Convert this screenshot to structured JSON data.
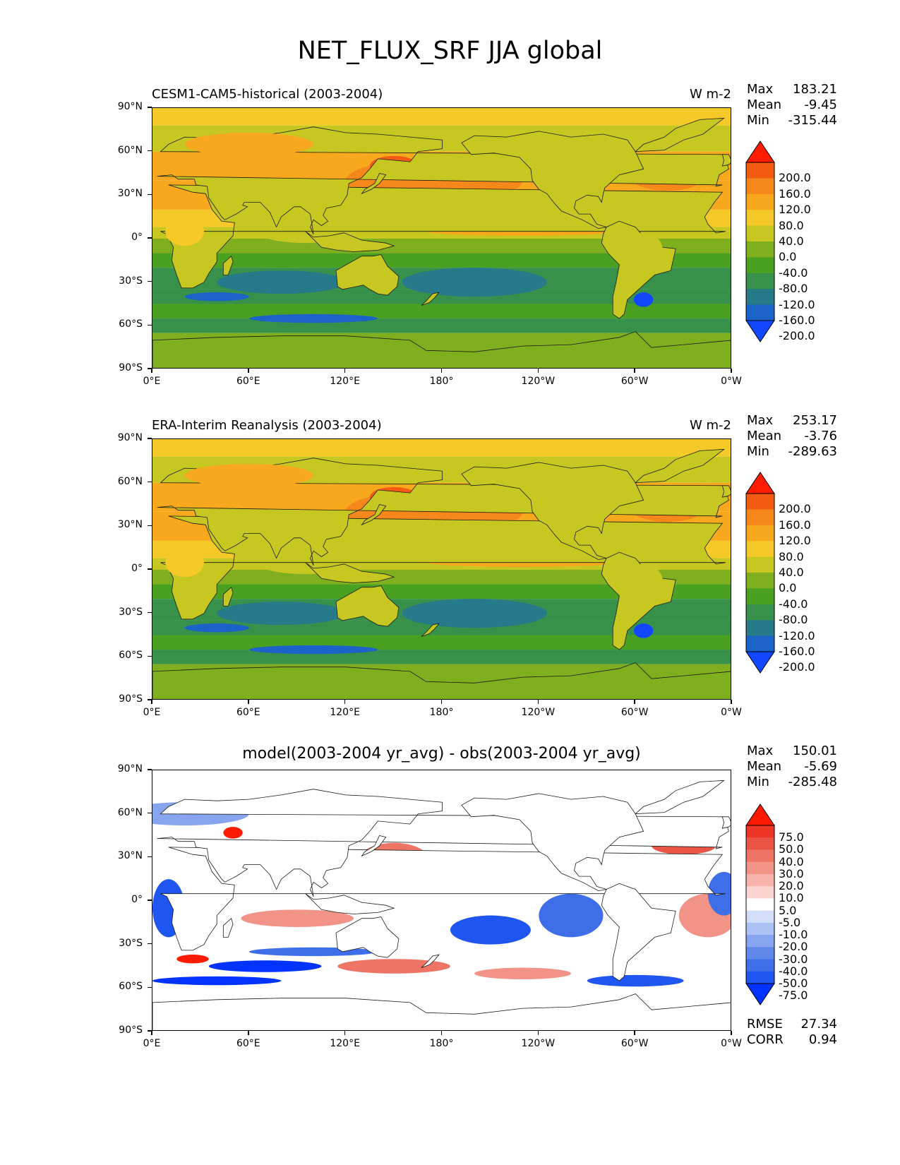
{
  "figure": {
    "title": "NET_FLUX_SRF JJA global",
    "x_ticks": [
      "0°E",
      "60°E",
      "120°E",
      "180°",
      "120°W",
      "60°W",
      "0°W"
    ],
    "y_ticks": [
      "90°N",
      "60°N",
      "30°N",
      "0°",
      "30°S",
      "60°S",
      "90°S"
    ]
  },
  "panels": [
    {
      "name": "model",
      "subtitle": "CESM1-CAM5-historical (2003-2004)",
      "units": "W m-2",
      "stats": {
        "max_label": "Max",
        "max": "183.21",
        "mean_label": "Mean",
        "mean": "-9.45",
        "min_label": "Min",
        "min": "-315.44"
      },
      "colorbar_labels": [
        "200.0",
        "160.0",
        "120.0",
        "80.0",
        "40.0",
        "0.0",
        "-40.0",
        "-80.0",
        "-120.0",
        "-160.0",
        "-200.0"
      ]
    },
    {
      "name": "obs",
      "subtitle": "ERA-Interim Reanalysis (2003-2004)",
      "units": "W m-2",
      "stats": {
        "max_label": "Max",
        "max": "253.17",
        "mean_label": "Mean",
        "mean": "-3.76",
        "min_label": "Min",
        "min": "-289.63"
      },
      "colorbar_labels": [
        "200.0",
        "160.0",
        "120.0",
        "80.0",
        "40.0",
        "0.0",
        "-40.0",
        "-80.0",
        "-120.0",
        "-160.0",
        "-200.0"
      ]
    },
    {
      "name": "diff",
      "subtitle": "model(2003-2004 yr_avg) - obs(2003-2004 yr_avg)",
      "stats": {
        "max_label": "Max",
        "max": "150.01",
        "mean_label": "Mean",
        "mean": "-5.69",
        "min_label": "Min",
        "min": "-285.48"
      },
      "colorbar_labels": [
        "75.0",
        "50.0",
        "40.0",
        "30.0",
        "20.0",
        "10.0",
        "5.0",
        "-5.0",
        "-10.0",
        "-20.0",
        "-30.0",
        "-40.0",
        "-50.0",
        "-75.0"
      ],
      "rmse_label": "RMSE",
      "rmse": "27.34",
      "corr_label": "CORR",
      "corr": "0.94"
    }
  ],
  "chart_data": [
    {
      "type": "heatmap",
      "title": "NET_FLUX_SRF JJA global",
      "subtitle": "CESM1-CAM5-historical (2003-2004)",
      "units": "W m-2",
      "xlim": [
        0,
        360
      ],
      "ylim": [
        -90,
        90
      ],
      "levels": [
        -200,
        -160,
        -120,
        -80,
        -40,
        0,
        40,
        80,
        120,
        160,
        200
      ],
      "colors": [
        "#1047ff",
        "#1b63c9",
        "#267a8a",
        "#38914a",
        "#4aa020",
        "#7fae1e",
        "#c7c722",
        "#f5c928",
        "#f7a81c",
        "#f6871a",
        "#f35a12",
        "#ff1c00"
      ],
      "max": 183.21,
      "mean": -9.45,
      "min": -315.44
    },
    {
      "type": "heatmap",
      "title": "NET_FLUX_SRF JJA global",
      "subtitle": "ERA-Interim Reanalysis (2003-2004)",
      "units": "W m-2",
      "xlim": [
        0,
        360
      ],
      "ylim": [
        -90,
        90
      ],
      "levels": [
        -200,
        -160,
        -120,
        -80,
        -40,
        0,
        40,
        80,
        120,
        160,
        200
      ],
      "colors": [
        "#1047ff",
        "#1b63c9",
        "#267a8a",
        "#38914a",
        "#4aa020",
        "#7fae1e",
        "#c7c722",
        "#f5c928",
        "#f7a81c",
        "#f6871a",
        "#f35a12",
        "#ff1c00"
      ],
      "max": 253.17,
      "mean": -3.76,
      "min": -289.63
    },
    {
      "type": "heatmap",
      "title": "NET_FLUX_SRF JJA global",
      "subtitle": "model(2003-2004 yr_avg) - obs(2003-2004 yr_avg)",
      "xlim": [
        0,
        360
      ],
      "ylim": [
        -90,
        90
      ],
      "levels": [
        -75,
        -50,
        -40,
        -30,
        -20,
        -10,
        -5,
        5,
        10,
        20,
        30,
        40,
        50,
        75
      ],
      "colors": [
        "#0033ff",
        "#1f55f0",
        "#3e6ee8",
        "#6088e8",
        "#86a5ee",
        "#acc2f4",
        "#d3dffa",
        "#ffffff",
        "#fbd4cf",
        "#f7b3aa",
        "#f29387",
        "#ee7466",
        "#ea5546",
        "#ed3525",
        "#ff1a00"
      ],
      "max": 150.01,
      "mean": -5.69,
      "min": -285.48,
      "rmse": 27.34,
      "corr": 0.94
    }
  ]
}
